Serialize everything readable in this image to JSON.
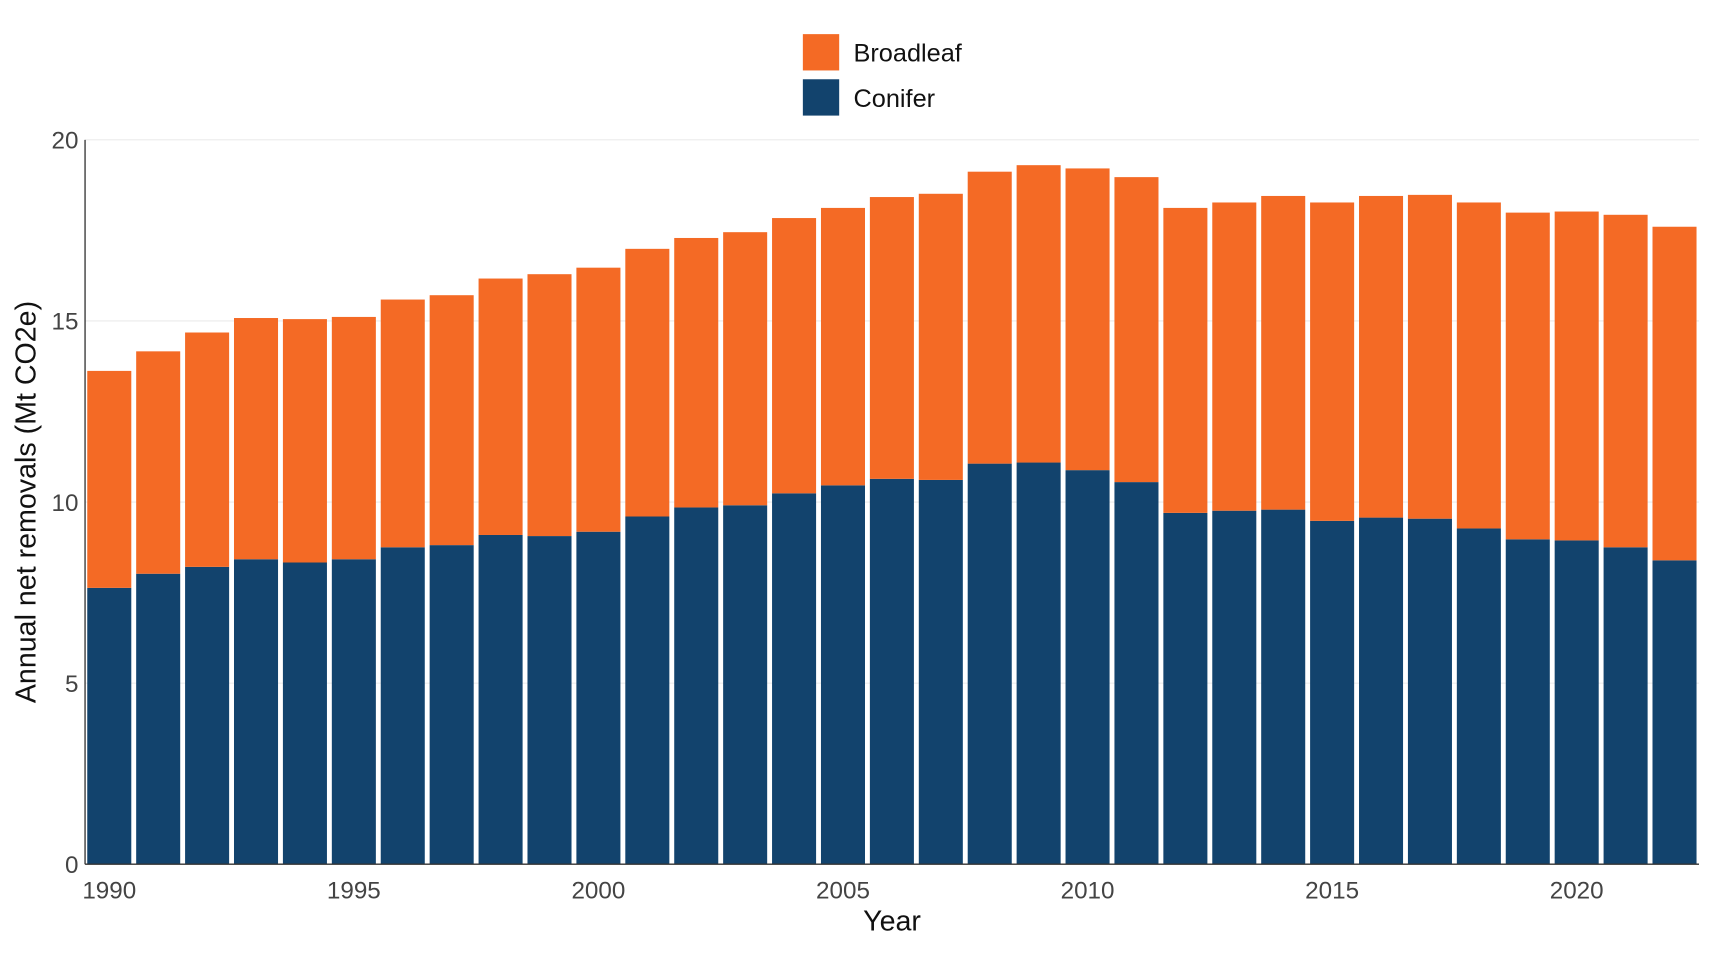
{
  "chart_data": {
    "type": "bar",
    "stacked": true,
    "title": "",
    "xlabel": "Year",
    "ylabel": "Annual net removals (Mt CO2e)",
    "ylim": [
      0,
      20
    ],
    "yticks": [
      0,
      5,
      10,
      15,
      20
    ],
    "xticks": [
      1990,
      1995,
      2000,
      2005,
      2010,
      2015,
      2020
    ],
    "grid": true,
    "legend_position": "top-center",
    "categories": [
      1990,
      1991,
      1992,
      1993,
      1994,
      1995,
      1996,
      1997,
      1998,
      1999,
      2000,
      2001,
      2002,
      2003,
      2004,
      2005,
      2006,
      2007,
      2008,
      2009,
      2010,
      2011,
      2012,
      2013,
      2014,
      2015,
      2016,
      2017,
      2018,
      2019,
      2020,
      2021,
      2022
    ],
    "series": [
      {
        "name": "Conifer",
        "color": "#12436D",
        "values": [
          7.63,
          8.02,
          8.21,
          8.42,
          8.33,
          8.42,
          8.75,
          8.81,
          9.09,
          9.06,
          9.18,
          9.6,
          9.85,
          9.91,
          10.24,
          10.46,
          10.64,
          10.61,
          11.06,
          11.09,
          10.88,
          10.55,
          9.7,
          9.76,
          9.79,
          9.48,
          9.57,
          9.54,
          9.27,
          8.97,
          8.94,
          8.75,
          8.39
        ]
      },
      {
        "name": "Broadleaf",
        "color": "#F46A25",
        "values": [
          5.99,
          6.14,
          6.47,
          6.66,
          6.72,
          6.69,
          6.84,
          6.9,
          7.08,
          7.23,
          7.29,
          7.39,
          7.44,
          7.54,
          7.6,
          7.66,
          7.78,
          7.9,
          8.06,
          8.21,
          8.33,
          8.42,
          8.42,
          8.51,
          8.66,
          8.79,
          8.88,
          8.94,
          9.0,
          9.02,
          9.08,
          9.18,
          9.21
        ]
      }
    ],
    "legend": [
      "Broadleaf",
      "Conifer"
    ]
  }
}
